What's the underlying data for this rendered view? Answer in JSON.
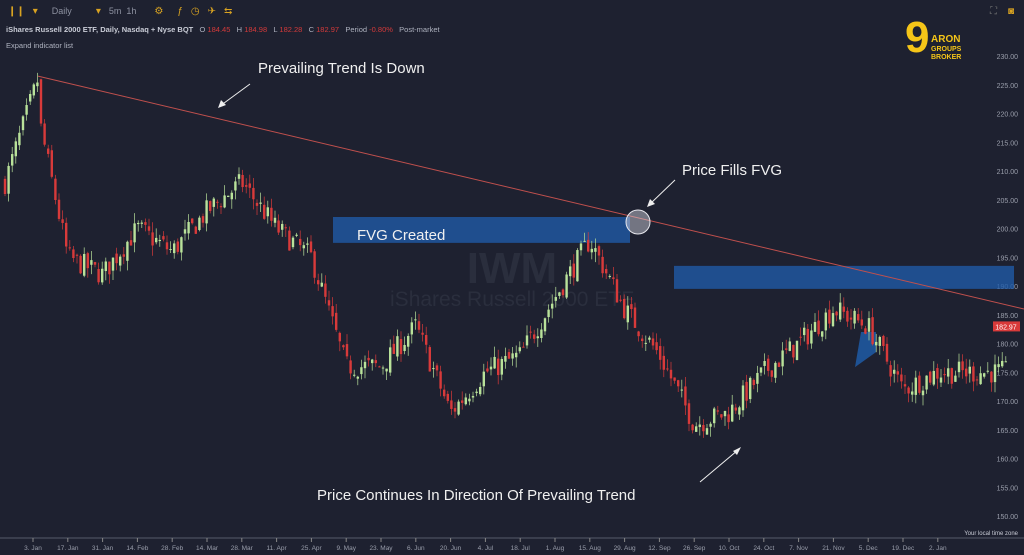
{
  "toolbar": {
    "interval": "Daily",
    "quick_intervals": [
      "5m",
      "1h"
    ],
    "icons": [
      "candles-icon",
      "settings-icon",
      "indicator-icon",
      "clock-icon",
      "replay-icon",
      "compare-icon"
    ]
  },
  "legend": {
    "title": "iShares Russell 2000 ETF, Daily, Nasdaq + Nyse BQT",
    "o_label": "O",
    "o": "184.45",
    "h_label": "H",
    "h": "184.98",
    "l_label": "L",
    "l": "182.28",
    "c_label": "C",
    "c": "182.97",
    "period_label": "Period",
    "period": "-0.80%",
    "session": "Post-market",
    "expand": "Expand indicator list"
  },
  "brand": {
    "name_line1": "ARON",
    "name_line2": "GROUPS",
    "name_line3": "BROKER",
    "color": "#f5c518"
  },
  "watermark": {
    "symbol": "IWM",
    "name": "iShares Russell 2000 ETF"
  },
  "colors": {
    "background": "#1e2130",
    "up": "#b9e29a",
    "down": "#d83a3a",
    "trend_line": "#c0504d",
    "fvg": "#1f5aa6",
    "last_price": "#d83a3a"
  },
  "chart_data": {
    "type": "candlestick",
    "ylim": [
      145,
      232
    ],
    "y_ticks": [
      "230.00",
      "225.00",
      "220.00",
      "215.00",
      "210.00",
      "205.00",
      "200.00",
      "195.00",
      "190.00",
      "185.00",
      "180.00",
      "175.00",
      "170.00",
      "165.00",
      "160.00",
      "155.00",
      "150.00"
    ],
    "x_ticks": [
      "3. Jan",
      "17. Jan",
      "31. Jan",
      "14. Feb",
      "28. Feb",
      "14. Mar",
      "28. Mar",
      "11. Apr",
      "25. Apr",
      "9. May",
      "23. May",
      "6. Jun",
      "20. Jun",
      "4. Jul",
      "18. Jul",
      "1. Aug",
      "15. Aug",
      "29. Aug",
      "12. Sep",
      "26. Sep",
      "10. Oct",
      "24. Oct",
      "7. Nov",
      "21. Nov",
      "5. Dec",
      "19. Dec",
      "2. Jan"
    ],
    "approx_close_at_ticks": [
      224,
      195,
      192,
      200,
      196,
      203,
      208,
      200,
      195,
      176,
      176,
      183,
      168,
      175,
      178,
      188,
      198,
      186,
      178,
      166,
      168,
      175,
      180,
      186,
      183,
      172,
      175
    ],
    "last_price": "182.97",
    "timezone_label": "Your local time zone",
    "annotations": {
      "trend": "Prevailing Trend Is Down",
      "fvg_created": "FVG Created",
      "fills": "Price Fills FVG",
      "continues": "Price Continues In Direction Of Prevailing Trend"
    },
    "trend_line": {
      "from": {
        "date": "5. Jan",
        "price": 226.5
      },
      "to": {
        "date": "2. Jan",
        "price": 186
      }
    },
    "fvg_zones": [
      {
        "top": 202,
        "bottom": 197.5
      },
      {
        "top": 193.5,
        "bottom": 189.5
      },
      {
        "top": 182,
        "bottom": 178.5
      }
    ]
  }
}
